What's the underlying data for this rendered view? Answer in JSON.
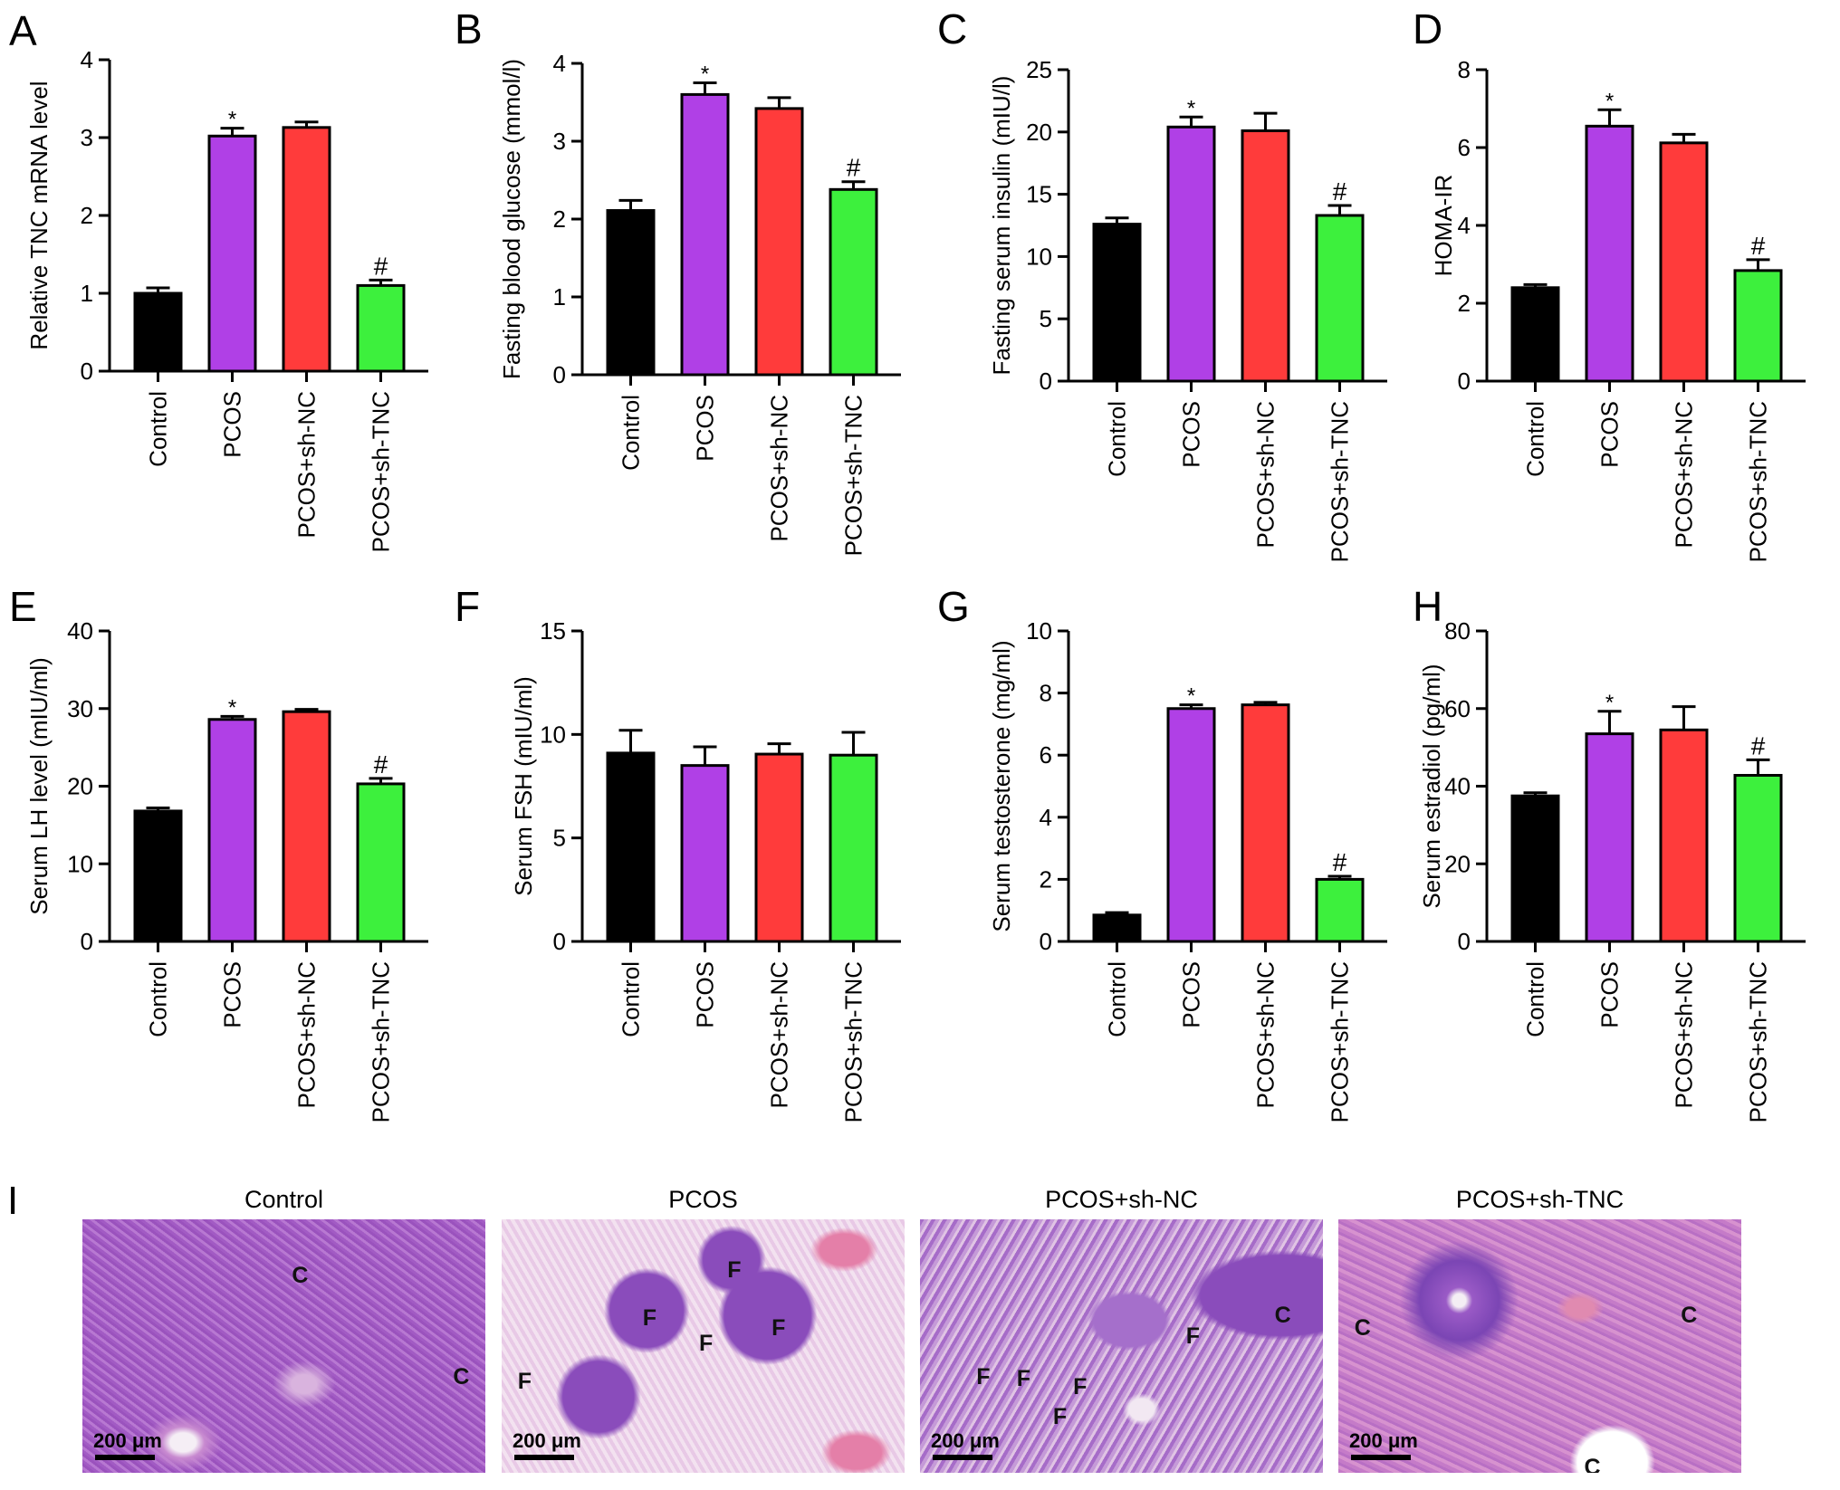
{
  "colors": {
    "Control": "#000000",
    "PCOS": "#b040e6",
    "PCOS+sh-NC": "#ff3b3b",
    "PCOS+sh-TNC": "#3df03d"
  },
  "categories": [
    "Control",
    "PCOS",
    "PCOS+sh-NC",
    "PCOS+sh-TNC"
  ],
  "chart_data": [
    {
      "panel": "A",
      "type": "bar",
      "ylabel": "Relative TNC mRNA level",
      "categories": [
        "Control",
        "PCOS",
        "PCOS+sh-NC",
        "PCOS+sh-TNC"
      ],
      "values": [
        1.0,
        3.02,
        3.13,
        1.1
      ],
      "errors": [
        0.07,
        0.1,
        0.07,
        0.07
      ],
      "ylim": [
        0,
        4
      ],
      "yticks": [
        "0",
        "1",
        "2",
        "3",
        "4"
      ],
      "annotations": [
        "",
        "*",
        "",
        "#"
      ]
    },
    {
      "panel": "B",
      "type": "bar",
      "ylabel": "Fasting blood glucose (mmol/l)",
      "categories": [
        "Control",
        "PCOS",
        "PCOS+sh-NC",
        "PCOS+sh-TNC"
      ],
      "values": [
        2.11,
        3.6,
        3.42,
        2.38
      ],
      "errors": [
        0.13,
        0.15,
        0.14,
        0.1
      ],
      "ylim": [
        0,
        4
      ],
      "yticks": [
        "0",
        "1",
        "2",
        "3",
        "4"
      ],
      "annotations": [
        "",
        "*",
        "",
        "#"
      ]
    },
    {
      "panel": "C",
      "type": "bar",
      "ylabel": "Fasting serum insulin (mIU/l)",
      "categories": [
        "Control",
        "PCOS",
        "PCOS+sh-NC",
        "PCOS+sh-TNC"
      ],
      "values": [
        12.6,
        20.4,
        20.1,
        13.3
      ],
      "errors": [
        0.5,
        0.8,
        1.4,
        0.8
      ],
      "ylim": [
        0,
        25
      ],
      "yticks": [
        "0",
        "5",
        "10",
        "15",
        "20",
        "25"
      ],
      "annotations": [
        "",
        "*",
        "",
        "#"
      ]
    },
    {
      "panel": "D",
      "type": "bar",
      "ylabel": "HOMA-IR",
      "categories": [
        "Control",
        "PCOS",
        "PCOS+sh-NC",
        "PCOS+sh-TNC"
      ],
      "values": [
        2.4,
        6.55,
        6.12,
        2.84
      ],
      "errors": [
        0.08,
        0.42,
        0.22,
        0.28
      ],
      "ylim": [
        0,
        8
      ],
      "yticks": [
        "0",
        "2",
        "4",
        "6",
        "8"
      ],
      "annotations": [
        "",
        "*",
        "",
        "#"
      ]
    },
    {
      "panel": "E",
      "type": "bar",
      "ylabel": "Serum LH level (mIU/ml)",
      "categories": [
        "Control",
        "PCOS",
        "PCOS+sh-NC",
        "PCOS+sh-TNC"
      ],
      "values": [
        16.8,
        28.6,
        29.6,
        20.3
      ],
      "errors": [
        0.4,
        0.4,
        0.3,
        0.7
      ],
      "ylim": [
        0,
        40
      ],
      "yticks": [
        "0",
        "10",
        "20",
        "30",
        "40"
      ],
      "annotations": [
        "",
        "*",
        "",
        "#"
      ]
    },
    {
      "panel": "F",
      "type": "bar",
      "ylabel": "Serum FSH (mIU/ml)",
      "categories": [
        "Control",
        "PCOS",
        "PCOS+sh-NC",
        "PCOS+sh-TNC"
      ],
      "values": [
        9.1,
        8.5,
        9.05,
        9.0
      ],
      "errors": [
        1.1,
        0.9,
        0.5,
        1.1
      ],
      "ylim": [
        0,
        15
      ],
      "yticks": [
        "0",
        "5",
        "10",
        "15"
      ],
      "annotations": [
        "",
        "",
        "",
        ""
      ]
    },
    {
      "panel": "G",
      "type": "bar",
      "ylabel": "Serum testosterone (mg/ml)",
      "categories": [
        "Control",
        "PCOS",
        "PCOS+sh-NC",
        "PCOS+sh-TNC"
      ],
      "values": [
        0.85,
        7.5,
        7.62,
        2.0
      ],
      "errors": [
        0.08,
        0.12,
        0.08,
        0.1
      ],
      "ylim": [
        0,
        10
      ],
      "yticks": [
        "0",
        "2",
        "4",
        "6",
        "8",
        "10"
      ],
      "annotations": [
        "",
        "*",
        "",
        "#"
      ]
    },
    {
      "panel": "H",
      "type": "bar",
      "ylabel": "Serum estradiol (pg/ml)",
      "categories": [
        "Control",
        "PCOS",
        "PCOS+sh-NC",
        "PCOS+sh-TNC"
      ],
      "values": [
        37.5,
        53.5,
        54.5,
        42.8
      ],
      "errors": [
        0.8,
        5.8,
        6.0,
        4.0
      ],
      "ylim": [
        0,
        80
      ],
      "yticks": [
        "0",
        "20",
        "40",
        "60",
        "80"
      ],
      "annotations": [
        "",
        "*",
        "",
        "#"
      ]
    }
  ],
  "histology": {
    "panel": "I",
    "scale_label": "200 μm",
    "images": [
      {
        "title": "Control",
        "labels": [
          "C",
          "C"
        ]
      },
      {
        "title": "PCOS",
        "labels": [
          "F",
          "F",
          "F",
          "F",
          "F"
        ]
      },
      {
        "title": "PCOS+sh-NC",
        "labels": [
          "C",
          "F",
          "F",
          "F",
          "F",
          "F"
        ]
      },
      {
        "title": "PCOS+sh-TNC",
        "labels": [
          "C",
          "C",
          "C"
        ]
      }
    ]
  }
}
